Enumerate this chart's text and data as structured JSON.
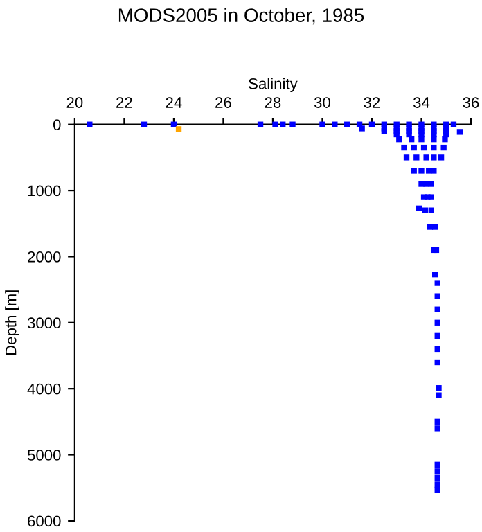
{
  "chart_data": {
    "type": "scatter",
    "title": "MODS2005 in October, 1985",
    "xlabel": "Salinity",
    "ylabel": "Depth [m]",
    "xlim": [
      20,
      36
    ],
    "xticks": [
      20,
      22,
      24,
      26,
      28,
      30,
      32,
      34,
      36
    ],
    "ylim": [
      6000,
      0
    ],
    "yticks": [
      0,
      1000,
      2000,
      3000,
      4000,
      5000,
      6000
    ],
    "grid": false,
    "legend": false,
    "marker": "square",
    "series": [
      {
        "color": "#0000ff",
        "x": [
          20.6,
          22.8,
          24.0,
          27.5,
          28.1,
          28.4,
          28.8,
          30.0,
          30.5,
          31.0,
          31.5,
          32.0,
          32.5,
          33.0,
          33.5,
          34.0,
          34.5,
          35.0,
          35.3,
          31.6,
          32.5,
          33.0,
          33.5,
          34.0,
          34.5,
          35.0,
          35.55,
          32.5,
          33.0,
          33.5,
          34.0,
          34.5,
          35.0,
          33.0,
          33.5,
          34.0,
          34.5,
          35.0,
          33.1,
          33.6,
          34.0,
          34.5,
          34.95,
          33.3,
          33.7,
          34.1,
          34.5,
          34.9,
          33.4,
          33.8,
          34.2,
          34.5,
          34.8,
          33.7,
          34.0,
          34.3,
          34.5,
          34.0,
          34.2,
          34.4,
          34.1,
          34.25,
          34.4,
          33.9,
          34.15,
          34.4,
          34.35,
          34.55,
          34.5,
          34.6,
          34.55,
          34.65,
          34.65,
          34.65,
          34.65,
          34.65,
          34.65,
          34.65,
          34.7,
          34.7,
          34.65,
          34.65,
          34.65,
          34.65,
          34.65,
          34.65,
          34.65
        ],
        "values": [
          0,
          0,
          0,
          0,
          0,
          0,
          0,
          0,
          0,
          0,
          0,
          0,
          0,
          0,
          0,
          0,
          0,
          0,
          0,
          60,
          60,
          60,
          60,
          60,
          60,
          60,
          112,
          100,
          100,
          100,
          100,
          100,
          100,
          150,
          150,
          150,
          150,
          150,
          225,
          225,
          225,
          225,
          225,
          350,
          350,
          350,
          350,
          350,
          500,
          500,
          500,
          500,
          500,
          700,
          700,
          700,
          700,
          900,
          900,
          900,
          1100,
          1100,
          1100,
          1270,
          1300,
          1300,
          1550,
          1550,
          1900,
          1900,
          2270,
          2400,
          2600,
          2800,
          3000,
          3200,
          3400,
          3600,
          3990,
          4100,
          4500,
          4600,
          5150,
          5250,
          5350,
          5450,
          5530
        ]
      },
      {
        "color": "#ffa500",
        "x": [
          24.2
        ],
        "values": [
          70
        ]
      }
    ]
  }
}
